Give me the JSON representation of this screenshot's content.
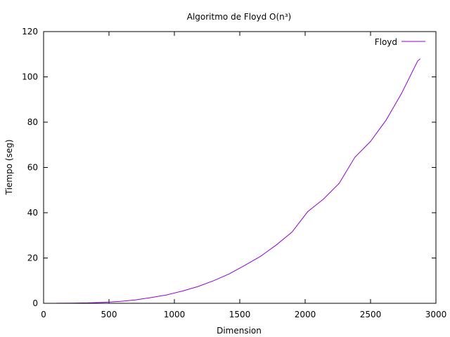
{
  "chart_data": {
    "type": "line",
    "title": "Algoritmo de Floyd O(n³)",
    "xlabel": "Dimension",
    "ylabel": "Tiempo (seg)",
    "xlim": [
      0,
      3000
    ],
    "ylim": [
      0,
      120
    ],
    "xticks": [
      0,
      500,
      1000,
      1500,
      2000,
      2500,
      3000
    ],
    "yticks": [
      0,
      20,
      40,
      60,
      80,
      100,
      120
    ],
    "grid": false,
    "legend_position": "top-right",
    "series": [
      {
        "name": "Floyd",
        "color": "#9400d3",
        "x": [
          100,
          220,
          340,
          460,
          580,
          700,
          820,
          940,
          1060,
          1180,
          1300,
          1420,
          1540,
          1660,
          1780,
          1900,
          2020,
          2140,
          2260,
          2380,
          2500,
          2620,
          2740,
          2860,
          2880
        ],
        "y": [
          0.03,
          0.08,
          0.2,
          0.42,
          0.8,
          1.5,
          2.5,
          3.7,
          5.4,
          7.4,
          10.0,
          13.0,
          16.8,
          20.8,
          25.8,
          31.5,
          40.5,
          46.0,
          53.0,
          64.5,
          71.5,
          81.0,
          93.0,
          107.0,
          108.0
        ]
      }
    ]
  }
}
